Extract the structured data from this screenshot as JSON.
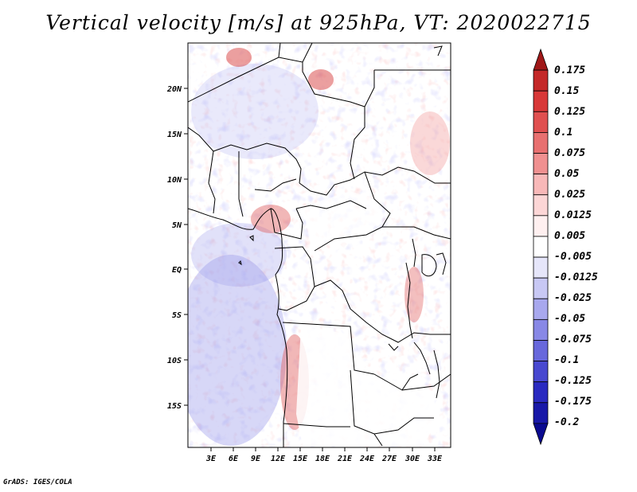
{
  "title": "Vertical velocity [m/s] at 925hPa, VT: 2020022715",
  "footer": "GrADS: IGES/COLA",
  "map": {
    "variable": "Vertical velocity",
    "units": "m/s",
    "level": "925hPa",
    "valid_time": "2020022715",
    "lat_labels": [
      "20N",
      "15N",
      "10N",
      "5N",
      "EQ",
      "5S",
      "10S",
      "15S"
    ],
    "lon_labels": [
      "3E",
      "6E",
      "9E",
      "12E",
      "15E",
      "18E",
      "21E",
      "24E",
      "27E",
      "30E",
      "33E"
    ]
  },
  "colorbar": {
    "labels": [
      "0.175",
      "0.15",
      "0.125",
      "0.1",
      "0.075",
      "0.05",
      "0.025",
      "0.0125",
      "0.005",
      "-0.005",
      "-0.0125",
      "-0.025",
      "-0.05",
      "-0.075",
      "-0.1",
      "-0.125",
      "-0.175",
      "-0.2"
    ],
    "colors": [
      "#a01818",
      "#c42828",
      "#d83838",
      "#e05050",
      "#e87070",
      "#f09090",
      "#f8b8b8",
      "#fcd6d6",
      "#fff0f0",
      "#ffffff",
      "#e6e6fa",
      "#c8c8f4",
      "#a8a8ee",
      "#8888e6",
      "#6868dc",
      "#4848d0",
      "#2a2ac0",
      "#1818a8",
      "#0a0a90"
    ]
  }
}
